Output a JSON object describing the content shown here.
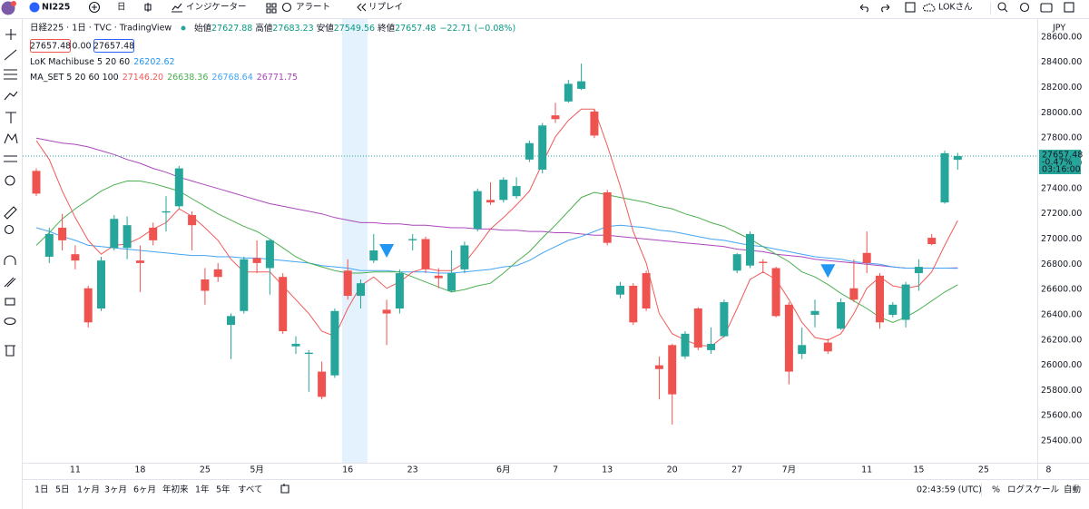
{
  "toolbar": {
    "symbol": "NI225",
    "interval": "日",
    "indicators": "インジケーター",
    "alert": "アラート",
    "replay": "リプレイ",
    "user": "LOKさん"
  },
  "chart_data": {
    "type": "candlestick",
    "title": "日経225 · 1日 · TVC · TradingView",
    "ohlc_labels": [
      "始値",
      "高値",
      "安値",
      "終値"
    ],
    "change": "−22.71 (−0.08%)",
    "quote_boxes": [
      "27657.48",
      "0.00",
      "27657.48"
    ],
    "currency": "JPY",
    "last_price_change": "-0.47%",
    "countdown": "03:16:00",
    "up_color": "#26a69a",
    "down_color": "#ef5350",
    "categories": [
      null,
      null,
      null,
      "11",
      null,
      null,
      null,
      null,
      "18",
      null,
      null,
      null,
      null,
      "25",
      null,
      null,
      null,
      "5月",
      null,
      null,
      null,
      null,
      null,
      null,
      "16",
      null,
      null,
      null,
      null,
      "23",
      null,
      null,
      null,
      null,
      null,
      null,
      "6月",
      null,
      null,
      null,
      "7",
      null,
      null,
      null,
      "13",
      null,
      null,
      null,
      null,
      "20",
      null,
      null,
      null,
      null,
      "27",
      null,
      null,
      null,
      "7月",
      null,
      null,
      null,
      null,
      null,
      "11",
      null,
      null,
      null,
      "15",
      null,
      null,
      null,
      null,
      "25",
      null,
      null,
      null,
      null,
      "8"
    ],
    "open": [
      27540,
      26860,
      27090,
      26880,
      26610,
      26450,
      26930,
      26930,
      26830,
      27090,
      27210,
      27260,
      27190,
      26680,
      26760,
      26320,
      26430,
      26850,
      26770,
      26700,
      26150,
      26090,
      25950,
      25920,
      26750,
      26550,
      26830,
      26440,
      26450,
      26990,
      27000,
      26710,
      26590,
      26760,
      27080,
      27310,
      27310,
      27340,
      27630,
      27550,
      27980,
      28090,
      28190,
      28010,
      27370,
      26560,
      26630,
      26730,
      26000,
      26160,
      26070,
      26450,
      26120,
      26230,
      26750,
      26790,
      26820,
      26770,
      26480,
      26090,
      26400,
      26180,
      26290,
      26610,
      26890,
      26710,
      26400,
      26360,
      26730,
      27010,
      27290,
      27627.88,
      null,
      null,
      null,
      null,
      null,
      null,
      null
    ],
    "high": [
      27560,
      27090,
      27200,
      26950,
      26630,
      26860,
      27190,
      27180,
      26950,
      27130,
      27340,
      27580,
      27220,
      26770,
      26810,
      26410,
      26860,
      26990,
      27000,
      26730,
      26230,
      26120,
      26030,
      26450,
      26840,
      26680,
      27040,
      26520,
      26760,
      27040,
      27020,
      26770,
      26910,
      26980,
      27400,
      27450,
      27490,
      27490,
      27780,
      27920,
      28080,
      28260,
      28390,
      28030,
      27390,
      26660,
      26650,
      26750,
      26070,
      26170,
      26270,
      26460,
      26300,
      26520,
      26890,
      27060,
      26840,
      26780,
      26500,
      26300,
      26520,
      26210,
      26530,
      26840,
      27060,
      26730,
      26500,
      26660,
      26840,
      27040,
      27700,
      27683.23,
      null,
      null,
      null,
      null,
      null,
      null,
      null
    ],
    "low": [
      27340,
      26810,
      26910,
      26760,
      26300,
      26430,
      26910,
      26840,
      26580,
      26950,
      27060,
      27240,
      26910,
      26480,
      26660,
      26050,
      26410,
      26730,
      26560,
      26250,
      26090,
      25790,
      25730,
      25900,
      26520,
      26450,
      26810,
      26160,
      26410,
      26910,
      26730,
      26610,
      26580,
      26730,
      27060,
      27270,
      27290,
      27320,
      27610,
      27520,
      27920,
      28080,
      28180,
      27800,
      26950,
      26530,
      26320,
      26430,
      25730,
      25530,
      26050,
      26120,
      26090,
      26220,
      26730,
      26770,
      26730,
      26380,
      25850,
      26050,
      26300,
      26090,
      26280,
      26500,
      26730,
      26290,
      26380,
      26300,
      26590,
      26950,
      27280,
      27549.56,
      null,
      null,
      null,
      null,
      null,
      null,
      null
    ],
    "close": [
      27360,
      27040,
      26990,
      26830,
      26340,
      26830,
      27160,
      27110,
      26810,
      26990,
      27220,
      27560,
      27110,
      26590,
      26700,
      26390,
      26840,
      26810,
      26990,
      26270,
      26170,
      26100,
      25750,
      26430,
      26550,
      26650,
      26910,
      26410,
      26730,
      27000,
      26760,
      26690,
      26730,
      26950,
      27380,
      27290,
      27470,
      27420,
      27760,
      27900,
      27950,
      28230,
      28250,
      27820,
      26970,
      26630,
      26340,
      26450,
      25970,
      25770,
      26250,
      26140,
      26170,
      26500,
      26880,
      27040,
      26810,
      26390,
      25950,
      26160,
      26430,
      26110,
      26500,
      26520,
      26810,
      26340,
      26480,
      26640,
      26780,
      26960,
      27680,
      27657.48,
      null,
      null,
      null,
      null,
      null,
      null,
      null
    ],
    "ylim": [
      25228,
      28743
    ],
    "yticks": [
      {
        "value": 25400,
        "label": "25400.00"
      },
      {
        "value": 25600,
        "label": "25600.00"
      },
      {
        "value": 25800,
        "label": "25800.00"
      },
      {
        "value": 26000,
        "label": "26000.00"
      },
      {
        "value": 26200,
        "label": "26200.00"
      },
      {
        "value": 26400,
        "label": "26400.00"
      },
      {
        "value": 26600,
        "label": "26600.00"
      },
      {
        "value": 26800,
        "label": "26800.00"
      },
      {
        "value": 27000,
        "label": "27000.00"
      },
      {
        "value": 27200,
        "label": "27200.00"
      },
      {
        "value": 27400,
        "label": "27400.00"
      },
      {
        "value": 27600,
        "label": "27600.00"
      },
      {
        "value": 27800,
        "label": "27800.00"
      },
      {
        "value": 28000,
        "label": "28000.00"
      },
      {
        "value": 28200,
        "label": "28200.00"
      },
      {
        "value": 28400,
        "label": "28400.00"
      },
      {
        "value": 28600,
        "label": "28600.00"
      }
    ],
    "lok_machibuse": {
      "name": "LoK Machibuse 5 20 60",
      "value": 26202.62,
      "color": "#2196f3",
      "signals": [
        null,
        null,
        null,
        null,
        null,
        null,
        null,
        null,
        null,
        null,
        null,
        null,
        null,
        null,
        null,
        null,
        null,
        null,
        null,
        null,
        null,
        null,
        null,
        null,
        null,
        null,
        null,
        26910,
        null,
        null,
        null,
        null,
        null,
        null,
        null,
        null,
        null,
        null,
        null,
        null,
        null,
        null,
        null,
        null,
        null,
        null,
        null,
        null,
        null,
        null,
        null,
        null,
        null,
        null,
        null,
        null,
        null,
        null,
        null,
        null,
        null,
        26750,
        null,
        null,
        null,
        null,
        null,
        null,
        null,
        null,
        null,
        null,
        null,
        null,
        null,
        null,
        null,
        null,
        null
      ]
    },
    "ma_set": {
      "name": "MA_SET 5 20 60 100",
      "value_labels": [
        "27146.20",
        "26638.36",
        "26768.64",
        "26771.75"
      ],
      "series": [
        {
          "color": "#f05a5a",
          "values": [
            27780,
            27630,
            27380,
            27170,
            26990,
            26880,
            26950,
            26960,
            27010,
            27080,
            27130,
            27240,
            27180,
            27090,
            26990,
            26840,
            26740,
            26740,
            26740,
            26630,
            26520,
            26410,
            26270,
            26230,
            26450,
            26630,
            26700,
            26610,
            26660,
            26740,
            26770,
            26750,
            26750,
            26810,
            26940,
            27080,
            27170,
            27270,
            27380,
            27600,
            27810,
            27940,
            28030,
            28030,
            27740,
            27420,
            27060,
            26810,
            26410,
            26250,
            26200,
            26160,
            26150,
            26230,
            26450,
            26680,
            26740,
            26680,
            26520,
            26340,
            26220,
            26200,
            26250,
            26410,
            26610,
            26700,
            26630,
            26610,
            26630,
            26740,
            26950,
            27146.2,
            null,
            null,
            null,
            null,
            null,
            null,
            null
          ]
        },
        {
          "color": "#4caf50",
          "values": [
            26950,
            27050,
            27160,
            27240,
            27310,
            27380,
            27430,
            27460,
            27460,
            27440,
            27410,
            27380,
            27320,
            27260,
            27200,
            27150,
            27100,
            27060,
            27000,
            26930,
            26860,
            26810,
            26780,
            26750,
            26730,
            26730,
            26740,
            26740,
            26740,
            26700,
            26660,
            26620,
            26580,
            26600,
            26630,
            26650,
            26730,
            26820,
            26900,
            27010,
            27110,
            27220,
            27330,
            27370,
            27350,
            27330,
            27310,
            27290,
            27260,
            27240,
            27200,
            27170,
            27130,
            27100,
            27050,
            27000,
            26940,
            26880,
            26820,
            26740,
            26700,
            26640,
            26570,
            26510,
            26450,
            26380,
            26340,
            26380,
            26440,
            26510,
            26580,
            26638.36,
            null,
            null,
            null,
            null,
            null,
            null,
            null
          ]
        },
        {
          "color": "#42a5f5",
          "values": [
            27090,
            27060,
            27020,
            26990,
            26950,
            26940,
            26930,
            26920,
            26910,
            26900,
            26890,
            26880,
            26870,
            26870,
            26860,
            26860,
            26850,
            26850,
            26840,
            26830,
            26820,
            26810,
            26790,
            26780,
            26770,
            26750,
            26750,
            26750,
            26740,
            26740,
            26740,
            26730,
            26730,
            26740,
            26750,
            26760,
            26780,
            26790,
            26830,
            26890,
            26940,
            26990,
            27020,
            27060,
            27100,
            27110,
            27100,
            27090,
            27070,
            27060,
            27040,
            27020,
            27000,
            26990,
            26970,
            26950,
            26940,
            26920,
            26900,
            26880,
            26860,
            26850,
            26840,
            26820,
            26810,
            26800,
            26780,
            26770,
            26770,
            26770,
            26770,
            26768.64,
            null,
            null,
            null,
            null,
            null,
            null,
            null
          ]
        },
        {
          "color": "#ab47bc",
          "values": [
            27800,
            27780,
            27760,
            27750,
            27730,
            27700,
            27670,
            27630,
            27600,
            27560,
            27530,
            27490,
            27460,
            27430,
            27400,
            27370,
            27340,
            27310,
            27280,
            27260,
            27240,
            27220,
            27200,
            27170,
            27150,
            27130,
            27130,
            27120,
            27120,
            27110,
            27110,
            27100,
            27090,
            27090,
            27080,
            27080,
            27070,
            27070,
            27060,
            27060,
            27050,
            27050,
            27040,
            27030,
            27030,
            27020,
            27010,
            27000,
            26990,
            26980,
            26970,
            26960,
            26950,
            26940,
            26920,
            26910,
            26900,
            26880,
            26870,
            26860,
            26840,
            26830,
            26820,
            26810,
            26800,
            26790,
            26780,
            26770,
            26770,
            26770,
            26770,
            26771.75,
            null,
            null,
            null,
            null,
            null,
            null,
            null
          ]
        }
      ]
    }
  },
  "range_bar": {
    "ranges": [
      "1日",
      "5日",
      "1ヶ月",
      "3ヶ月",
      "6ヶ月",
      "年初来",
      "1年",
      "5年",
      "すべて"
    ],
    "time": "02:43:59 (UTC)",
    "percent": "%",
    "log": "ログスケール",
    "auto": "自動"
  }
}
